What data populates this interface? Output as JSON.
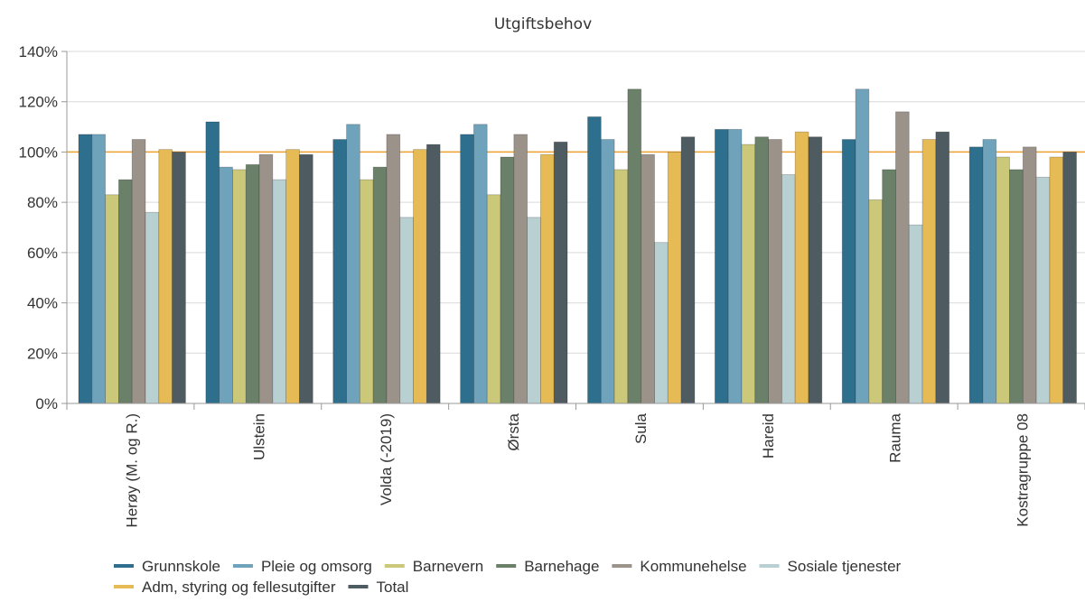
{
  "chart_data": {
    "type": "bar",
    "title": "Utgiftsbehov",
    "xlabel": "",
    "ylabel": "",
    "ylim": [
      0,
      140
    ],
    "y_ticks": [
      "0%",
      "20%",
      "40%",
      "60%",
      "80%",
      "100%",
      "120%",
      "140%"
    ],
    "y_tick_values": [
      0,
      20,
      40,
      60,
      80,
      100,
      120,
      140
    ],
    "reference_line": {
      "value": 100,
      "color": "#f0a030"
    },
    "grid": true,
    "legend_position": "bottom-left",
    "categories": [
      "Herøy (M. og R.)",
      "Ulstein",
      "Volda (-2019)",
      "Ørsta",
      "Sula",
      "Hareid",
      "Rauma",
      "Kostragruppe 08"
    ],
    "series": [
      {
        "name": "Grunnskole",
        "color": "#2e6f8e",
        "values": [
          107,
          112,
          105,
          107,
          114,
          109,
          105,
          102
        ]
      },
      {
        "name": "Pleie og omsorg",
        "color": "#6fa3bc",
        "values": [
          107,
          94,
          111,
          111,
          105,
          109,
          125,
          105
        ]
      },
      {
        "name": "Barnevern",
        "color": "#ccc87a",
        "values": [
          83,
          93,
          89,
          83,
          93,
          103,
          81,
          98
        ]
      },
      {
        "name": "Barnehage",
        "color": "#6b8068",
        "values": [
          89,
          95,
          94,
          98,
          125,
          106,
          93,
          93
        ]
      },
      {
        "name": "Kommunehelse",
        "color": "#9b928a",
        "values": [
          105,
          99,
          107,
          107,
          99,
          105,
          116,
          102
        ]
      },
      {
        "name": "Sosiale tjenester",
        "color": "#b9d0d3",
        "values": [
          76,
          89,
          74,
          74,
          64,
          91,
          71,
          90
        ]
      },
      {
        "name": "Adm, styring og fellesutgifter",
        "color": "#e6bb55",
        "values": [
          101,
          101,
          101,
          99,
          100,
          108,
          105,
          98
        ]
      },
      {
        "name": "Total",
        "color": "#4e5b60",
        "values": [
          100,
          99,
          103,
          104,
          106,
          106,
          108,
          100
        ]
      }
    ]
  }
}
